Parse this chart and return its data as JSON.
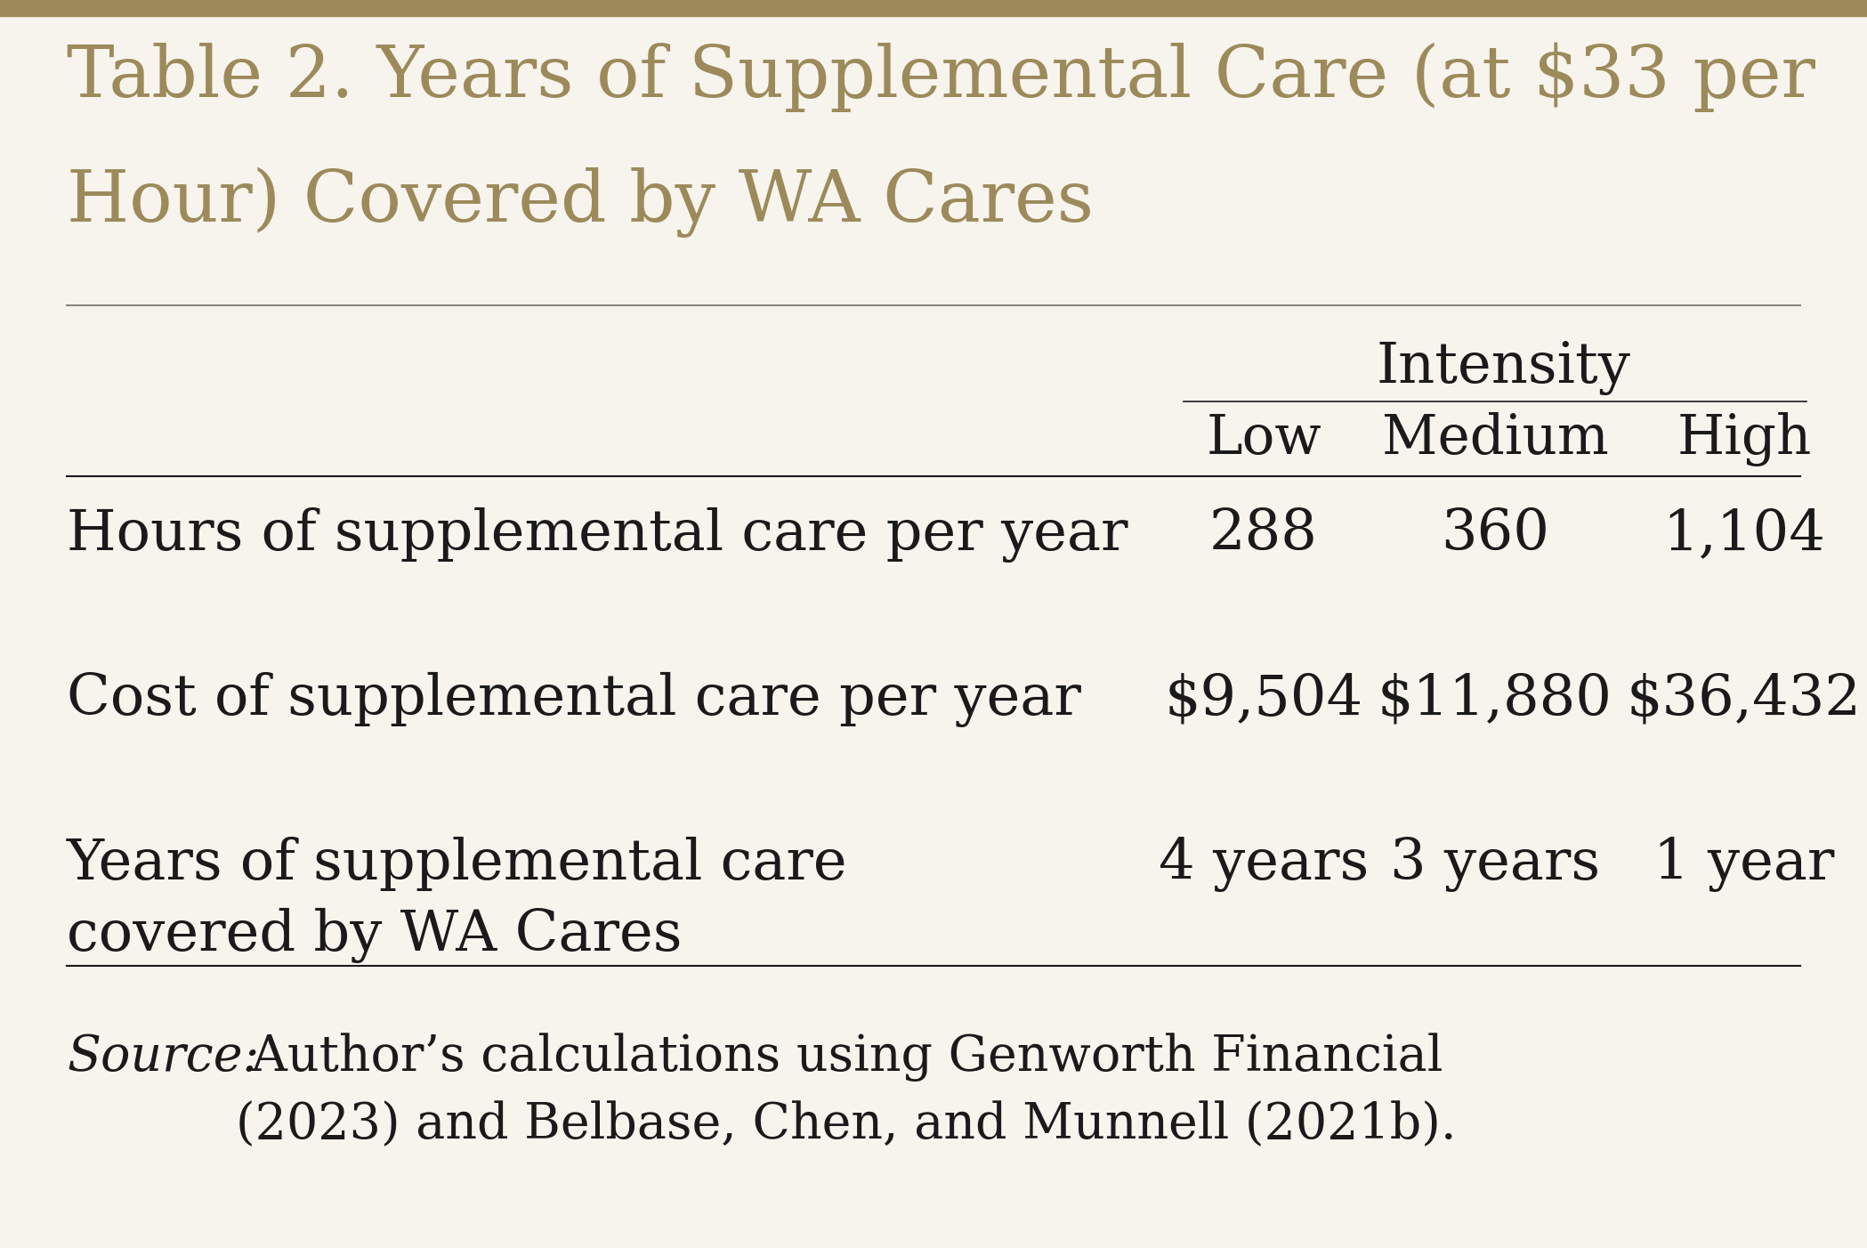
{
  "title_line1": "Table 2. Years of Supplemental Care (at $33 per",
  "title_line2": "Hour) Covered by WA Cares",
  "title_color": "#9c8a5a",
  "background_color": "#f7f4ee",
  "text_color": "#1a1a1a",
  "intensity_label": "Intensity",
  "col_headers": [
    "Low",
    "Medium",
    "High"
  ],
  "row_labels": [
    "Hours of supplemental care per year",
    "Cost of supplemental care per year",
    "Years of supplemental care\ncovered by WA Cares"
  ],
  "data": [
    [
      "288",
      "360",
      "1,104"
    ],
    [
      "$9,504",
      "$11,880",
      "$36,432"
    ],
    [
      "4 years",
      "3 years",
      "1 year"
    ]
  ],
  "source_italic": "Source:",
  "source_rest": " Author’s calculations using Genworth Financial\n(2023) and Belbase, Chen, and Munnell (2021b).",
  "figwidth": 20.98,
  "figheight": 14.02,
  "dpi": 100,
  "top_bar_color": "#9c8a5a",
  "top_bar_height": 18
}
